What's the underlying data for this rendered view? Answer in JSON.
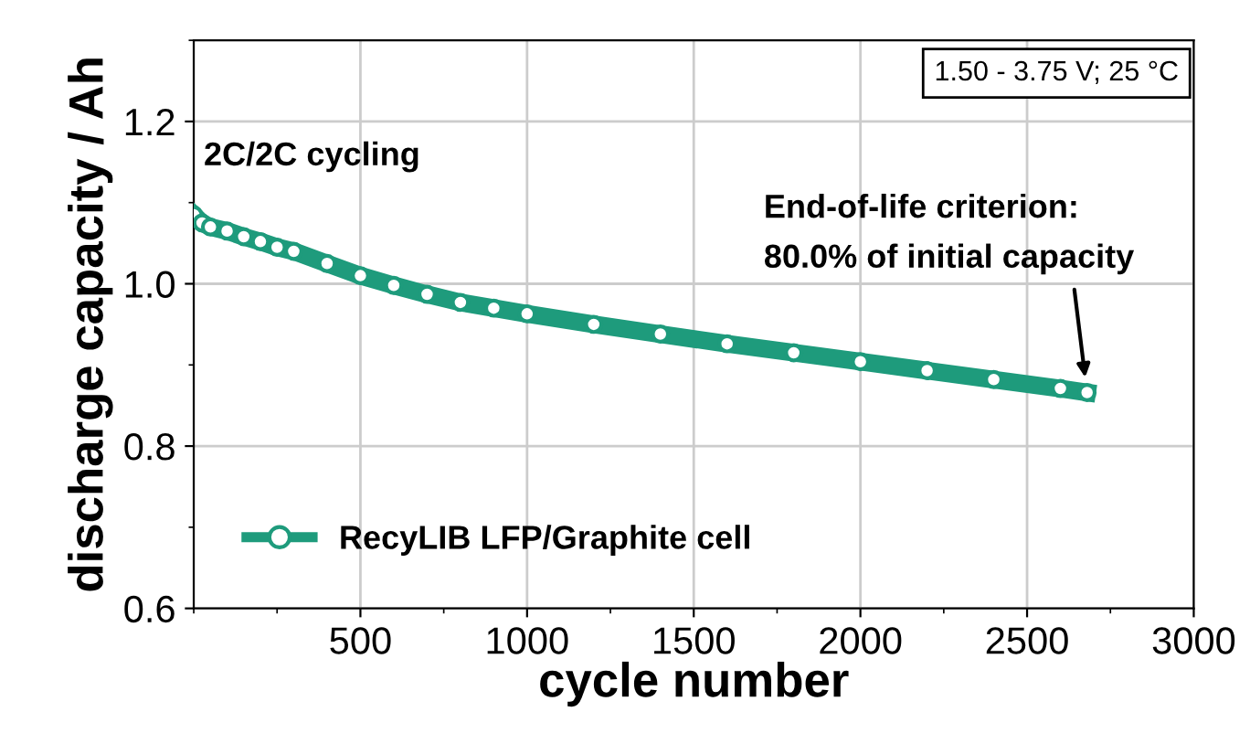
{
  "chart_data": {
    "type": "line",
    "xlabel": "cycle number",
    "ylabel": "discharge capacity / Ah",
    "xlim": [
      0,
      3000
    ],
    "xticks": [
      500,
      1000,
      1500,
      2000,
      2500,
      3000
    ],
    "ylim": [
      0.6,
      1.3
    ],
    "yticks": [
      0.6,
      0.8,
      {
        "value": 1.0,
        "label": "1.0"
      },
      1.2
    ],
    "grid": true,
    "legend": "bottom left",
    "marker": "circle",
    "line_style": "solid",
    "series": [
      {
        "name": "RecyLIB LFP/Graphite cell",
        "color": "#1e9b7c",
        "x": [
          0,
          25,
          50,
          100,
          150,
          200,
          250,
          300,
          400,
          500,
          600,
          700,
          800,
          900,
          1000,
          1200,
          1400,
          1600,
          1800,
          2000,
          2200,
          2400,
          2600,
          2680
        ],
        "values": [
          1.085,
          1.075,
          1.07,
          1.065,
          1.058,
          1.052,
          1.045,
          1.04,
          1.025,
          1.01,
          0.998,
          0.987,
          0.977,
          0.97,
          0.963,
          0.95,
          0.938,
          0.926,
          0.915,
          0.904,
          0.893,
          0.882,
          0.871,
          0.866
        ]
      }
    ],
    "annotations": [
      "2C/2C cycling",
      "End-of-life criterion:\n80.0% of initial capacity",
      "1.50 - 3.75 V; 25 °C"
    ]
  }
}
